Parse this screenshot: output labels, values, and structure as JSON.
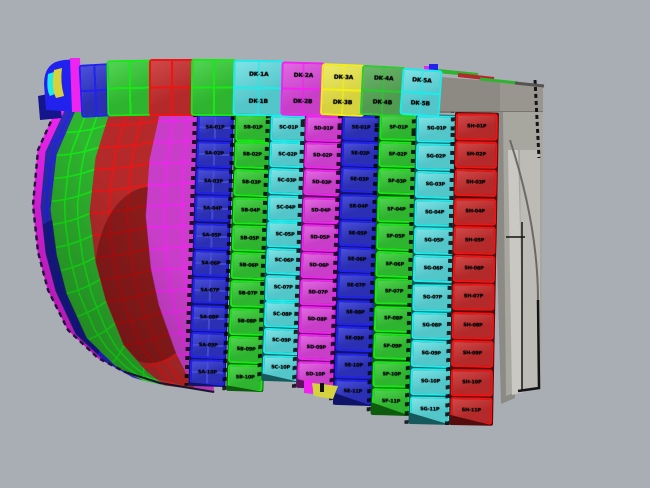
{
  "viewport": {
    "background": "#a9aeb5"
  },
  "palette": {
    "blue": {
      "fill": "#2a2fb4",
      "light": "#4a50d8",
      "border": "#2222ee",
      "dark": "#101468"
    },
    "green": {
      "fill": "#2eb42e",
      "light": "#52d452",
      "border": "#18e818",
      "dark": "#0c5c0c"
    },
    "cyan": {
      "fill": "#52c6c9",
      "light": "#7fe3e6",
      "border": "#20eaea",
      "dark": "#15595c"
    },
    "magenta": {
      "fill": "#c93ec9",
      "light": "#e06ae0",
      "border": "#f024f0",
      "dark": "#5e125e"
    },
    "red": {
      "fill": "#b42a2a",
      "light": "#d04848",
      "border": "#ee1414",
      "dark": "#550c0c"
    },
    "yellow": {
      "fill": "#d6d23e",
      "light": "#ecea6a",
      "border": "#f4ee18",
      "dark": "#6b660e"
    },
    "darkgreen": {
      "fill": "#4f9b50",
      "light": "#6cb56c",
      "border": "#2ecb2e",
      "dark": "#1d4d1d"
    }
  },
  "hull": {
    "strakes": [
      "magenta",
      "blue",
      "green",
      "red",
      "magenta"
    ]
  },
  "top_row": {
    "plates": [
      {
        "color": "blue",
        "type": "grid",
        "labels": []
      },
      {
        "color": "green",
        "type": "grid",
        "labels": []
      },
      {
        "color": "red",
        "type": "grid",
        "labels": []
      },
      {
        "color": "green",
        "type": "grid",
        "labels": []
      },
      {
        "color": "cyan",
        "type": "labeled",
        "labels": [
          "DK-1A",
          "DK-1B"
        ]
      },
      {
        "color": "magenta",
        "type": "labeled",
        "labels": [
          "DK-2A",
          "DK-2B"
        ]
      },
      {
        "color": "yellow",
        "type": "labeled",
        "labels": [
          "DK-3A",
          "DK-3B"
        ]
      },
      {
        "color": "darkgreen",
        "type": "labeled",
        "labels": [
          "DK-4A",
          "DK-4B"
        ]
      },
      {
        "color": "cyan",
        "type": "labeled",
        "labels": [
          "DK-5A",
          "DK-5B"
        ]
      }
    ]
  },
  "plate_columns": [
    {
      "id": "strake-a",
      "color": "blue",
      "plates": [
        "SA-01P",
        "SA-02P",
        "SA-03P",
        "SA-04P",
        "SA-05P",
        "SA-06P",
        "SA-07P",
        "SA-08P",
        "SA-09P",
        "SA-10P"
      ]
    },
    {
      "id": "strake-b",
      "color": "green",
      "plates": [
        "SB-01P",
        "SB-02P",
        "SB-03P",
        "SB-04P",
        "SB-05P",
        "SB-06P",
        "SB-07P",
        "SB-08P",
        "SB-09P",
        "SB-10P"
      ]
    },
    {
      "id": "strake-c",
      "color": "cyan",
      "plates": [
        "SC-01P",
        "SC-02P",
        "SC-03P",
        "SC-04P",
        "SC-05P",
        "SC-06P",
        "SC-07P",
        "SC-08P",
        "SC-09P",
        "SC-10P"
      ]
    },
    {
      "id": "strake-d",
      "color": "magenta",
      "plates": [
        "SD-01P",
        "SD-02P",
        "SD-03P",
        "SD-04P",
        "SD-05P",
        "SD-06P",
        "SD-07P",
        "SD-08P",
        "SD-09P",
        "SD-10P"
      ]
    },
    {
      "id": "strake-e",
      "color": "blue",
      "plates": [
        "SE-01P",
        "SE-02P",
        "SE-03P",
        "SE-04P",
        "SE-05P",
        "SE-06P",
        "SE-07P",
        "SE-08P",
        "SE-09P",
        "SE-10P",
        "SE-11P"
      ]
    },
    {
      "id": "strake-f",
      "color": "green",
      "plates": [
        "SF-01P",
        "SF-02P",
        "SF-03P",
        "SF-04P",
        "SF-05P",
        "SF-06P",
        "SF-07P",
        "SF-08P",
        "SF-09P",
        "SF-10P",
        "SF-11P"
      ]
    },
    {
      "id": "strake-g",
      "color": "cyan",
      "plates": [
        "SG-01P",
        "SG-02P",
        "SG-03P",
        "SG-04P",
        "SG-05P",
        "SG-06P",
        "SG-07P",
        "SG-08P",
        "SG-09P",
        "SG-10P",
        "SG-11P"
      ]
    },
    {
      "id": "strake-h",
      "color": "red",
      "plates": [
        "SH-01P",
        "SH-02P",
        "SH-03P",
        "SH-04P",
        "SH-05P",
        "SH-06P",
        "SH-07P",
        "SH-08P",
        "SH-09P",
        "SH-10P",
        "SH-11P"
      ]
    }
  ],
  "structure": {
    "face": "#8d8a83",
    "face2": "#99968f",
    "shadow": "#8b8a84",
    "slab": "#a8a79f",
    "highlight": "#c9c8c2",
    "panel": "#bcbbb5",
    "edge": "#6a6963",
    "line": "#141414"
  }
}
